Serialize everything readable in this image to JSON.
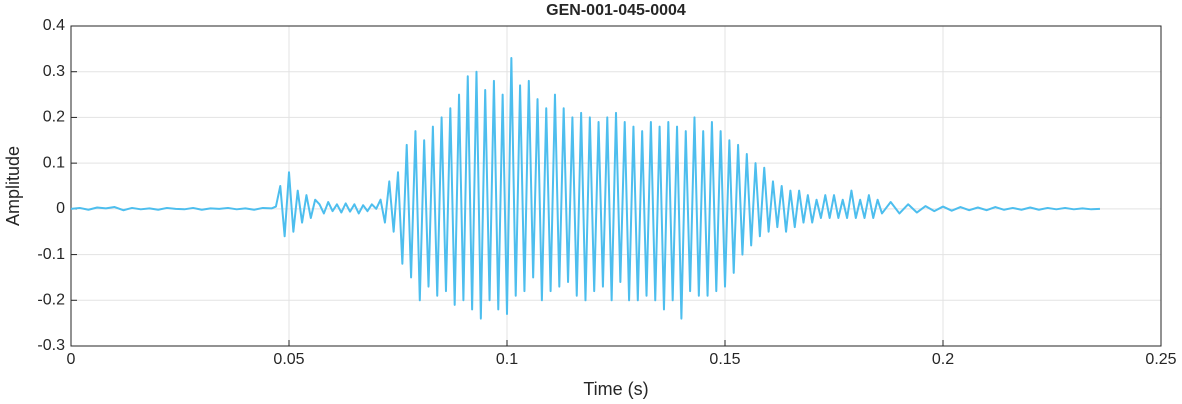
{
  "chart_data": {
    "type": "line",
    "title": "GEN-001-045-0004",
    "x_label": "Time (s)",
    "y_label": "Amplitude",
    "color": "#4dbeee",
    "grid": true,
    "xlim": [
      0,
      0.25
    ],
    "xticks": [
      0,
      0.05,
      0.1,
      0.15,
      0.2,
      0.25
    ],
    "ylim": [
      -0.3,
      0.4
    ],
    "yticks": [
      -0.3,
      -0.2,
      -0.1,
      0,
      0.1,
      0.2,
      0.3,
      0.4
    ],
    "x": [
      0,
      0.002,
      0.004,
      0.006,
      0.008,
      0.01,
      0.012,
      0.014,
      0.016,
      0.018,
      0.02,
      0.022,
      0.024,
      0.026,
      0.028,
      0.03,
      0.032,
      0.034,
      0.036,
      0.038,
      0.04,
      0.042,
      0.044,
      0.046,
      0.047,
      0.048,
      0.049,
      0.05,
      0.051,
      0.052,
      0.053,
      0.054,
      0.055,
      0.056,
      0.057,
      0.058,
      0.059,
      0.06,
      0.061,
      0.062,
      0.063,
      0.064,
      0.065,
      0.066,
      0.067,
      0.068,
      0.069,
      0.07,
      0.071,
      0.072,
      0.073,
      0.074,
      0.075,
      0.076,
      0.077,
      0.078,
      0.079,
      0.08,
      0.081,
      0.082,
      0.083,
      0.084,
      0.085,
      0.086,
      0.087,
      0.088,
      0.089,
      0.09,
      0.091,
      0.092,
      0.093,
      0.094,
      0.095,
      0.096,
      0.097,
      0.098,
      0.099,
      0.1,
      0.101,
      0.102,
      0.103,
      0.104,
      0.105,
      0.106,
      0.107,
      0.108,
      0.109,
      0.11,
      0.111,
      0.112,
      0.113,
      0.114,
      0.115,
      0.116,
      0.117,
      0.118,
      0.119,
      0.12,
      0.121,
      0.122,
      0.123,
      0.124,
      0.125,
      0.126,
      0.127,
      0.128,
      0.129,
      0.13,
      0.131,
      0.132,
      0.133,
      0.134,
      0.135,
      0.136,
      0.137,
      0.138,
      0.139,
      0.14,
      0.141,
      0.142,
      0.143,
      0.144,
      0.145,
      0.146,
      0.147,
      0.148,
      0.149,
      0.15,
      0.151,
      0.152,
      0.153,
      0.154,
      0.155,
      0.156,
      0.157,
      0.158,
      0.159,
      0.16,
      0.161,
      0.162,
      0.163,
      0.164,
      0.165,
      0.166,
      0.167,
      0.168,
      0.169,
      0.17,
      0.171,
      0.172,
      0.173,
      0.174,
      0.175,
      0.176,
      0.177,
      0.178,
      0.179,
      0.18,
      0.181,
      0.182,
      0.183,
      0.184,
      0.185,
      0.186,
      0.188,
      0.19,
      0.192,
      0.194,
      0.196,
      0.198,
      0.2,
      0.202,
      0.204,
      0.206,
      0.208,
      0.21,
      0.212,
      0.214,
      0.216,
      0.218,
      0.22,
      0.222,
      0.224,
      0.226,
      0.228,
      0.23,
      0.232,
      0.234,
      0.236
    ],
    "values": [
      0,
      0.002,
      -0.002,
      0.003,
      0.001,
      0.004,
      -0.003,
      0.002,
      -0.001,
      0.001,
      -0.002,
      0.002,
      0,
      -0.001,
      0.002,
      -0.002,
      0.001,
      0,
      0.002,
      -0.001,
      0.001,
      -0.002,
      0.002,
      0.001,
      0.005,
      0.05,
      -0.06,
      0.08,
      -0.05,
      0.04,
      -0.03,
      0.03,
      -0.02,
      0.02,
      0.01,
      -0.01,
      0.015,
      -0.005,
      0.01,
      -0.008,
      0.012,
      -0.006,
      0.01,
      -0.01,
      0.008,
      -0.005,
      0.01,
      0.0,
      0.02,
      -0.03,
      0.06,
      -0.05,
      0.08,
      -0.12,
      0.14,
      -0.15,
      0.17,
      -0.2,
      0.15,
      -0.17,
      0.18,
      -0.19,
      0.2,
      -0.18,
      0.22,
      -0.21,
      0.25,
      -0.2,
      0.29,
      -0.22,
      0.3,
      -0.24,
      0.26,
      -0.2,
      0.28,
      -0.22,
      0.25,
      -0.23,
      0.33,
      -0.19,
      0.27,
      -0.18,
      0.28,
      -0.15,
      0.24,
      -0.2,
      0.22,
      -0.18,
      0.25,
      -0.17,
      0.22,
      -0.16,
      0.2,
      -0.19,
      0.21,
      -0.2,
      0.2,
      -0.18,
      0.19,
      -0.17,
      0.2,
      -0.2,
      0.21,
      -0.16,
      0.19,
      -0.2,
      0.18,
      -0.2,
      0.17,
      -0.19,
      0.19,
      -0.2,
      0.18,
      -0.22,
      0.19,
      -0.2,
      0.18,
      -0.24,
      0.17,
      -0.18,
      0.2,
      -0.19,
      0.17,
      -0.19,
      0.19,
      -0.18,
      0.17,
      -0.17,
      0.15,
      -0.14,
      0.14,
      -0.1,
      0.12,
      -0.08,
      0.1,
      -0.06,
      0.09,
      -0.05,
      0.06,
      -0.04,
      0.05,
      -0.05,
      0.04,
      -0.04,
      0.04,
      -0.03,
      0.03,
      -0.03,
      0.02,
      -0.02,
      0.03,
      -0.02,
      0.03,
      -0.02,
      0.02,
      -0.02,
      0.04,
      -0.02,
      0.02,
      -0.02,
      0.03,
      -0.02,
      0.02,
      -0.01,
      0.015,
      -0.01,
      0.01,
      -0.008,
      0.006,
      -0.005,
      0.005,
      -0.004,
      0.004,
      -0.003,
      0.003,
      -0.003,
      0.004,
      -0.002,
      0.002,
      -0.002,
      0.003,
      -0.002,
      0.002,
      -0.001,
      0.002,
      -0.001,
      0.001,
      -0.001,
      0
    ]
  }
}
